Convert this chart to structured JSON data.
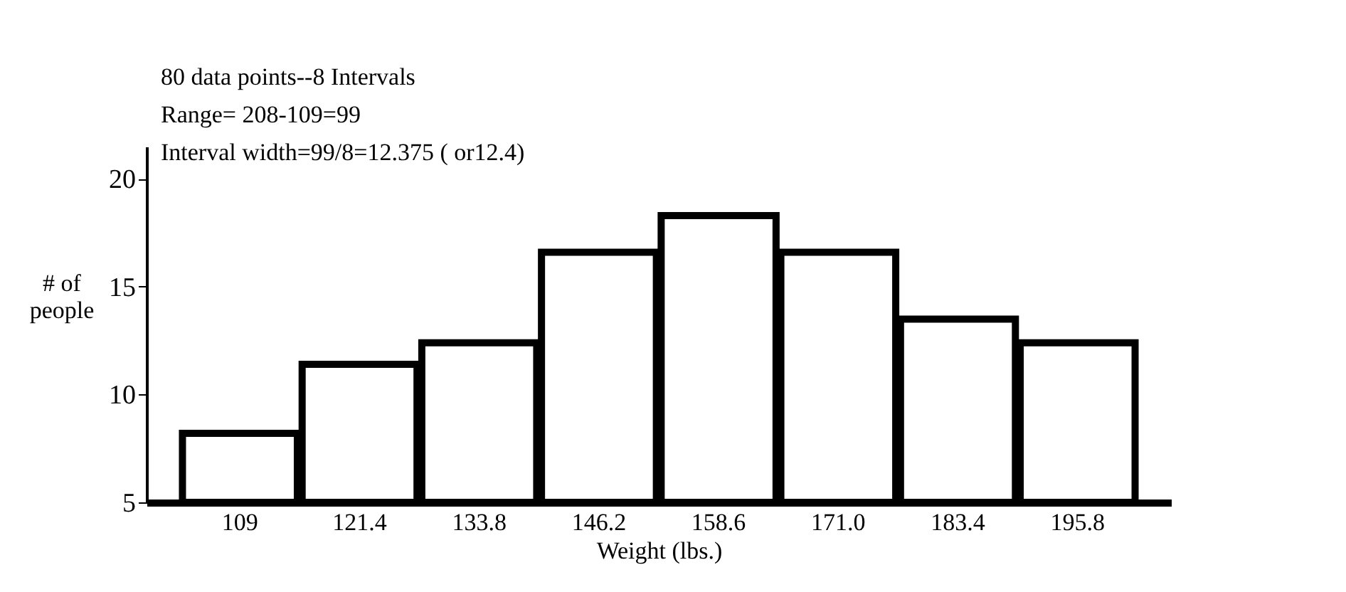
{
  "chart_data": {
    "type": "bar",
    "annotations": [
      "80 data points--8 Intervals",
      "Range= 208-109=99",
      "Interval width=99/8=12.375 ( or12.4)"
    ],
    "xlabel": "Weight (lbs.)",
    "ylabel": "# of people",
    "categories": [
      "109",
      "121.4",
      "133.8",
      "146.2",
      "158.6",
      "171.0",
      "183.4",
      "195.8"
    ],
    "values": [
      8.2,
      11.4,
      12.4,
      16.6,
      18.3,
      16.6,
      13.5,
      12.4
    ],
    "color": "#ffffff",
    "ylim": [
      5,
      21.5
    ],
    "yticks": [
      5,
      10,
      15,
      20
    ],
    "grid": false
  }
}
